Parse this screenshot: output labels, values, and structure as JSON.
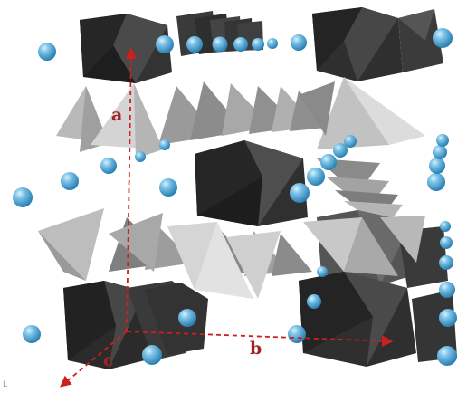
{
  "figure": {
    "axes": [
      {
        "id": "a",
        "label": "a"
      },
      {
        "id": "b",
        "label": "b"
      },
      {
        "id": "c",
        "label": "c"
      }
    ],
    "colors": {
      "background": "#ffffff",
      "octahedron_dark": "#2f2f2f",
      "octahedron_mid": "#4a4a4a",
      "tetrahedron_light": "#d6d6d6",
      "tetrahedron_mid": "#a4a4a4",
      "tetrahedron_dark": "#6e6e6e",
      "atom": "#4aa3d6",
      "atom_highlight": "#bfe6fb",
      "axis_arrow": "#cc1f1f",
      "axis_label": "#9e2323"
    },
    "icons": [
      "axis-arrow",
      "atom-sphere",
      "octahedron",
      "tetrahedron"
    ],
    "corner_mark": "L"
  }
}
